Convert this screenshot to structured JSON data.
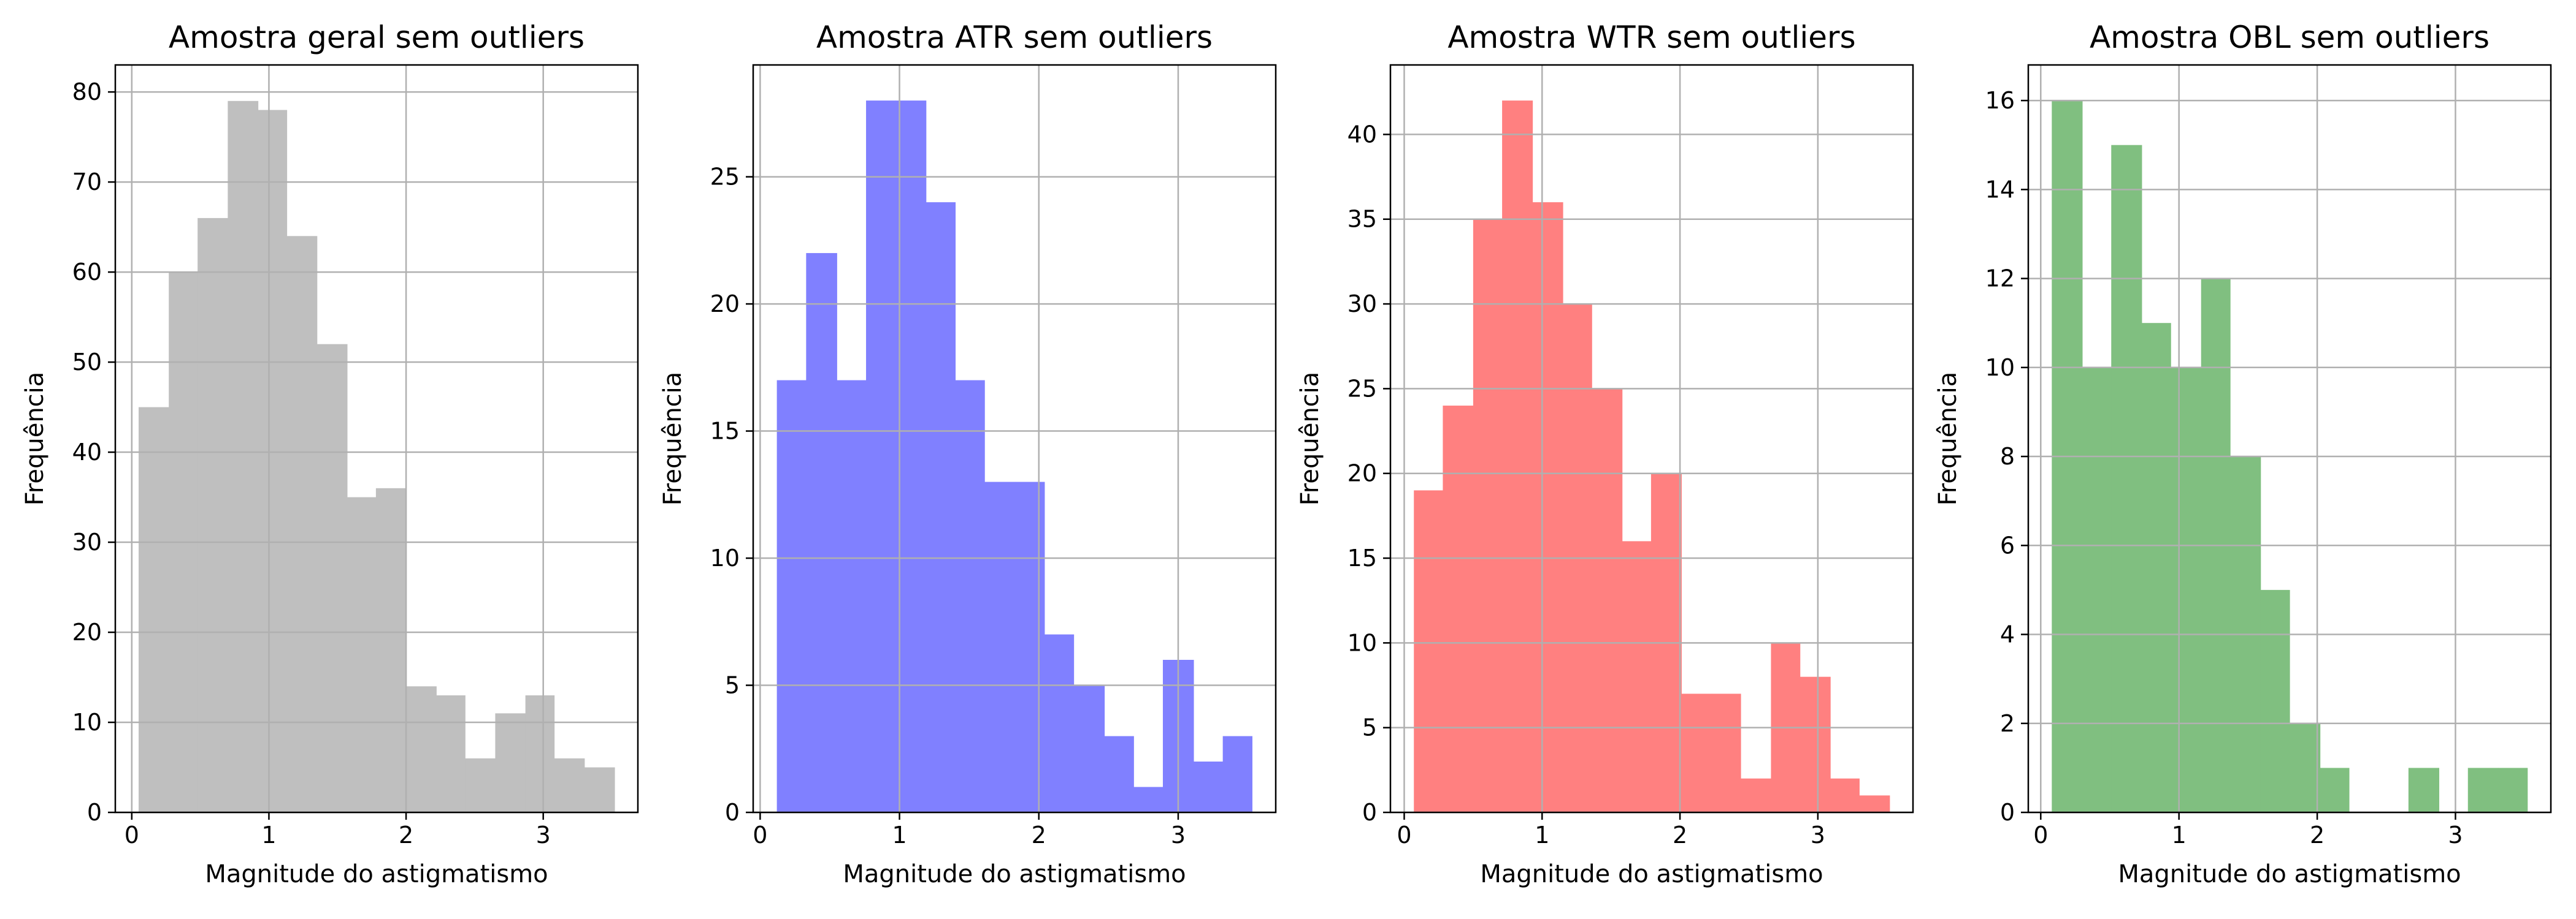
{
  "chart_data": [
    {
      "type": "bar",
      "title": "Amostra geral sem outliers",
      "xlabel": "Magnitude do astigmatismo",
      "ylabel": "Frequência",
      "color": "#bfbfbf",
      "bin_edges": [
        0.05,
        0.27,
        0.48,
        0.7,
        0.92,
        1.13,
        1.35,
        1.57,
        1.78,
        2.0,
        2.22,
        2.43,
        2.65,
        2.87,
        3.08,
        3.3,
        3.52
      ],
      "values": [
        45,
        60,
        66,
        79,
        78,
        64,
        52,
        35,
        36,
        14,
        13,
        6,
        11,
        13,
        6,
        5
      ],
      "xlim": [
        -0.12,
        3.69
      ],
      "ylim": [
        0,
        83
      ],
      "xticks": [
        0,
        1,
        2,
        3
      ],
      "yticks": [
        0,
        10,
        20,
        30,
        40,
        50,
        60,
        70,
        80
      ],
      "grid": true
    },
    {
      "type": "bar",
      "title": "Amostra ATR sem outliers",
      "xlabel": "Magnitude do astigmatismo",
      "ylabel": "Frequência",
      "color": "#8080ff",
      "bin_edges": [
        0.12,
        0.33,
        0.55,
        0.76,
        0.97,
        1.19,
        1.4,
        1.61,
        1.83,
        2.04,
        2.25,
        2.47,
        2.68,
        2.89,
        3.11,
        3.32,
        3.53
      ],
      "values": [
        17,
        22,
        17,
        28,
        28,
        24,
        17,
        13,
        13,
        7,
        5,
        3,
        1,
        6,
        2,
        3
      ],
      "xlim": [
        -0.05,
        3.7
      ],
      "ylim": [
        0,
        29.4
      ],
      "xticks": [
        0,
        1,
        2,
        3
      ],
      "yticks": [
        0,
        5,
        10,
        15,
        20,
        25
      ],
      "grid": true
    },
    {
      "type": "bar",
      "title": "Amostra WTR sem outliers",
      "xlabel": "Magnitude do astigmatismo",
      "ylabel": "Frequência",
      "color": "#ff8080",
      "bin_edges": [
        0.07,
        0.28,
        0.5,
        0.71,
        0.93,
        1.15,
        1.36,
        1.58,
        1.79,
        2.01,
        2.23,
        2.44,
        2.66,
        2.87,
        3.09,
        3.3,
        3.52
      ],
      "values": [
        19,
        24,
        35,
        42,
        36,
        30,
        25,
        16,
        20,
        7,
        7,
        2,
        10,
        8,
        2,
        1
      ],
      "xlim": [
        -0.1,
        3.69
      ],
      "ylim": [
        0,
        44.1
      ],
      "xticks": [
        0,
        1,
        2,
        3
      ],
      "yticks": [
        0,
        5,
        10,
        15,
        20,
        25,
        30,
        35,
        40
      ],
      "grid": true
    },
    {
      "type": "bar",
      "title": "Amostra OBL sem outliers",
      "xlabel": "Magnitude do astigmatismo",
      "ylabel": "Frequência",
      "color": "#80bf80",
      "bin_edges": [
        0.08,
        0.3,
        0.51,
        0.73,
        0.94,
        1.16,
        1.37,
        1.59,
        1.8,
        2.02,
        2.23,
        2.45,
        2.66,
        2.88,
        3.09,
        3.31,
        3.52
      ],
      "values": [
        16,
        10,
        15,
        11,
        10,
        12,
        8,
        5,
        2,
        1,
        0,
        0,
        1,
        0,
        1,
        1
      ],
      "xlim": [
        -0.09,
        3.69
      ],
      "ylim": [
        0,
        16.8
      ],
      "xticks": [
        0,
        1,
        2,
        3
      ],
      "yticks": [
        0,
        2,
        4,
        6,
        8,
        10,
        12,
        14,
        16
      ],
      "grid": true
    }
  ]
}
